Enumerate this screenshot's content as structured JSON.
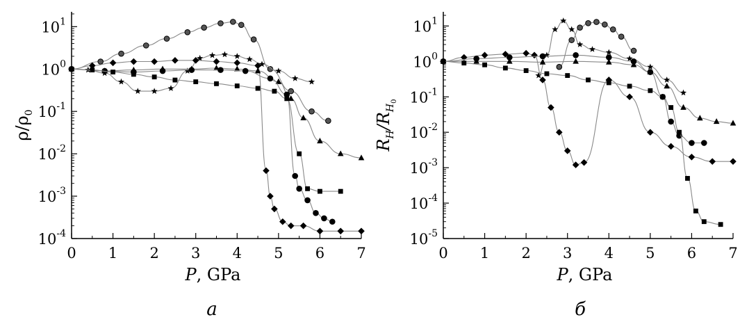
{
  "chart_data": [
    {
      "type": "scatter",
      "panel_label": "a",
      "xlabel": "P, GPa",
      "ylabel": "ρ/ρ0",
      "xlim": [
        0,
        7
      ],
      "ylim_log10": [
        -4,
        1.35
      ],
      "y_scale": "log",
      "x_ticks": [
        "0",
        "1",
        "2",
        "3",
        "4",
        "5",
        "6",
        "7"
      ],
      "y_ticks": [
        {
          "base": "10",
          "exp": "1"
        },
        {
          "base": "10",
          "exp": "0"
        },
        {
          "base": "10",
          "exp": "-1"
        },
        {
          "base": "10",
          "exp": "-2"
        },
        {
          "base": "10",
          "exp": "-3"
        },
        {
          "base": "10",
          "exp": "-4"
        }
      ],
      "grid": false,
      "series": [
        {
          "marker": "circle-half",
          "x": [
            0,
            0.7,
            1.2,
            1.8,
            2.3,
            2.8,
            3.2,
            3.6,
            3.9,
            4.1,
            4.4,
            4.8,
            5.3,
            5.8,
            6.2
          ],
          "y": [
            1.0,
            1.5,
            2.3,
            3.6,
            5.2,
            7.4,
            9.5,
            12,
            13,
            11,
            5.0,
            1.0,
            0.3,
            0.1,
            0.06
          ]
        },
        {
          "marker": "star",
          "x": [
            0,
            0.4,
            0.8,
            1.2,
            1.6,
            2.0,
            2.4,
            2.8,
            3.1,
            3.4,
            3.7,
            4.0,
            4.3,
            4.6,
            5.0,
            5.4,
            5.8
          ],
          "y": [
            1.0,
            0.95,
            0.8,
            0.5,
            0.3,
            0.3,
            0.35,
            0.9,
            1.8,
            2.1,
            2.2,
            2.0,
            1.7,
            1.3,
            0.9,
            0.6,
            0.5
          ]
        },
        {
          "marker": "diamond",
          "x": [
            0,
            0.5,
            1.0,
            1.5,
            2.0,
            2.5,
            3.0,
            3.5,
            4.0,
            4.5,
            4.7,
            4.8,
            4.9,
            5.1,
            5.3,
            5.6,
            6.0,
            6.5,
            7.0
          ],
          "y": [
            1.0,
            1.2,
            1.4,
            1.5,
            1.5,
            1.6,
            1.6,
            1.5,
            1.4,
            1.2,
            0.004,
            0.001,
            0.0005,
            0.00025,
            0.0002,
            0.0002,
            0.00015,
            0.00015,
            0.00015
          ]
        },
        {
          "marker": "triangle",
          "x": [
            0,
            0.8,
            1.5,
            2.2,
            2.9,
            3.5,
            4.0,
            4.5,
            5.0,
            5.3,
            5.6,
            6.0,
            6.5,
            7.0
          ],
          "y": [
            1.0,
            0.9,
            0.95,
            1.0,
            1.0,
            1.05,
            1.0,
            0.9,
            0.5,
            0.2,
            0.07,
            0.02,
            0.01,
            0.008
          ]
        },
        {
          "marker": "circle",
          "x": [
            0,
            0.8,
            1.5,
            2.2,
            2.9,
            3.6,
            4.2,
            4.8,
            5.2,
            5.4,
            5.5,
            5.7,
            5.9,
            6.1,
            6.3
          ],
          "y": [
            1.0,
            0.9,
            0.85,
            0.9,
            0.95,
            0.95,
            0.9,
            0.6,
            0.25,
            0.003,
            0.0015,
            0.0008,
            0.0004,
            0.0003,
            0.00025
          ]
        },
        {
          "marker": "square",
          "x": [
            0,
            0.5,
            1.0,
            1.5,
            2.0,
            2.5,
            3.0,
            3.5,
            4.0,
            4.5,
            4.9,
            5.2,
            5.5,
            5.7,
            6.0,
            6.5
          ],
          "y": [
            1.0,
            0.95,
            0.85,
            0.75,
            0.65,
            0.55,
            0.5,
            0.45,
            0.4,
            0.35,
            0.3,
            0.2,
            0.01,
            0.0015,
            0.0013,
            0.0013
          ]
        }
      ]
    },
    {
      "type": "scatter",
      "panel_label": "б",
      "xlabel": "P, GPa",
      "ylabel": "RH/RH0",
      "xlim": [
        0,
        7
      ],
      "ylim_log10": [
        -5,
        1.4
      ],
      "y_scale": "log",
      "x_ticks": [
        "0",
        "1",
        "2",
        "3",
        "4",
        "5",
        "6",
        "7"
      ],
      "y_ticks": [
        {
          "base": "10",
          "exp": "1"
        },
        {
          "base": "10",
          "exp": "0"
        },
        {
          "base": "10",
          "exp": "-1"
        },
        {
          "base": "10",
          "exp": "-2"
        },
        {
          "base": "10",
          "exp": "-3"
        },
        {
          "base": "10",
          "exp": "-4"
        },
        {
          "base": "10",
          "exp": "-5"
        }
      ],
      "grid": false,
      "series": [
        {
          "marker": "circle-half",
          "x": [
            2.8,
            3.1,
            3.3,
            3.5,
            3.7,
            3.9,
            4.1,
            4.3,
            4.6
          ],
          "y": [
            0.7,
            4.0,
            9.0,
            12,
            13,
            11,
            8.0,
            5.0,
            2.0
          ]
        },
        {
          "marker": "star",
          "x": [
            2.3,
            2.5,
            2.7,
            2.9,
            3.1,
            3.3,
            3.6,
            4.0,
            4.5,
            5.0,
            5.4,
            5.8
          ],
          "y": [
            0.4,
            1.5,
            8.0,
            14,
            8.0,
            3.0,
            2.2,
            1.8,
            1.2,
            0.7,
            0.3,
            0.13
          ]
        },
        {
          "marker": "diamond",
          "x": [
            0,
            0.5,
            1.0,
            1.5,
            2.0,
            2.2,
            2.4,
            2.6,
            2.8,
            3.0,
            3.2,
            3.4,
            4.0,
            4.5,
            5.0,
            5.5,
            6.0,
            6.5,
            7.0
          ],
          "y": [
            1.0,
            1.3,
            1.5,
            1.6,
            1.7,
            1.5,
            0.3,
            0.05,
            0.01,
            0.003,
            0.0012,
            0.0014,
            0.3,
            0.1,
            0.01,
            0.004,
            0.002,
            0.0015,
            0.0015
          ]
        },
        {
          "marker": "triangle",
          "x": [
            0,
            0.8,
            1.6,
            2.4,
            3.2,
            4.0,
            4.6,
            5.0,
            5.4,
            5.8,
            6.2,
            6.6,
            7.0
          ],
          "y": [
            1.0,
            1.0,
            1.0,
            0.95,
            1.0,
            0.95,
            0.8,
            0.5,
            0.2,
            0.05,
            0.025,
            0.02,
            0.018
          ]
        },
        {
          "marker": "circle",
          "x": [
            0,
            0.8,
            1.6,
            2.4,
            3.2,
            4.0,
            4.6,
            5.0,
            5.3,
            5.5,
            5.7,
            6.0,
            6.3
          ],
          "y": [
            1.0,
            1.2,
            1.3,
            1.4,
            1.5,
            1.3,
            1.0,
            0.5,
            0.1,
            0.02,
            0.008,
            0.005,
            0.005
          ]
        },
        {
          "marker": "square",
          "x": [
            0,
            0.5,
            1.0,
            1.5,
            2.0,
            2.5,
            3.0,
            3.5,
            4.0,
            4.5,
            5.0,
            5.3,
            5.5,
            5.7,
            5.9,
            6.1,
            6.3,
            6.7
          ],
          "y": [
            1.0,
            0.9,
            0.8,
            0.65,
            0.55,
            0.45,
            0.4,
            0.3,
            0.25,
            0.2,
            0.15,
            0.1,
            0.05,
            0.01,
            0.0005,
            6e-05,
            3e-05,
            2.5e-05
          ]
        }
      ]
    }
  ]
}
